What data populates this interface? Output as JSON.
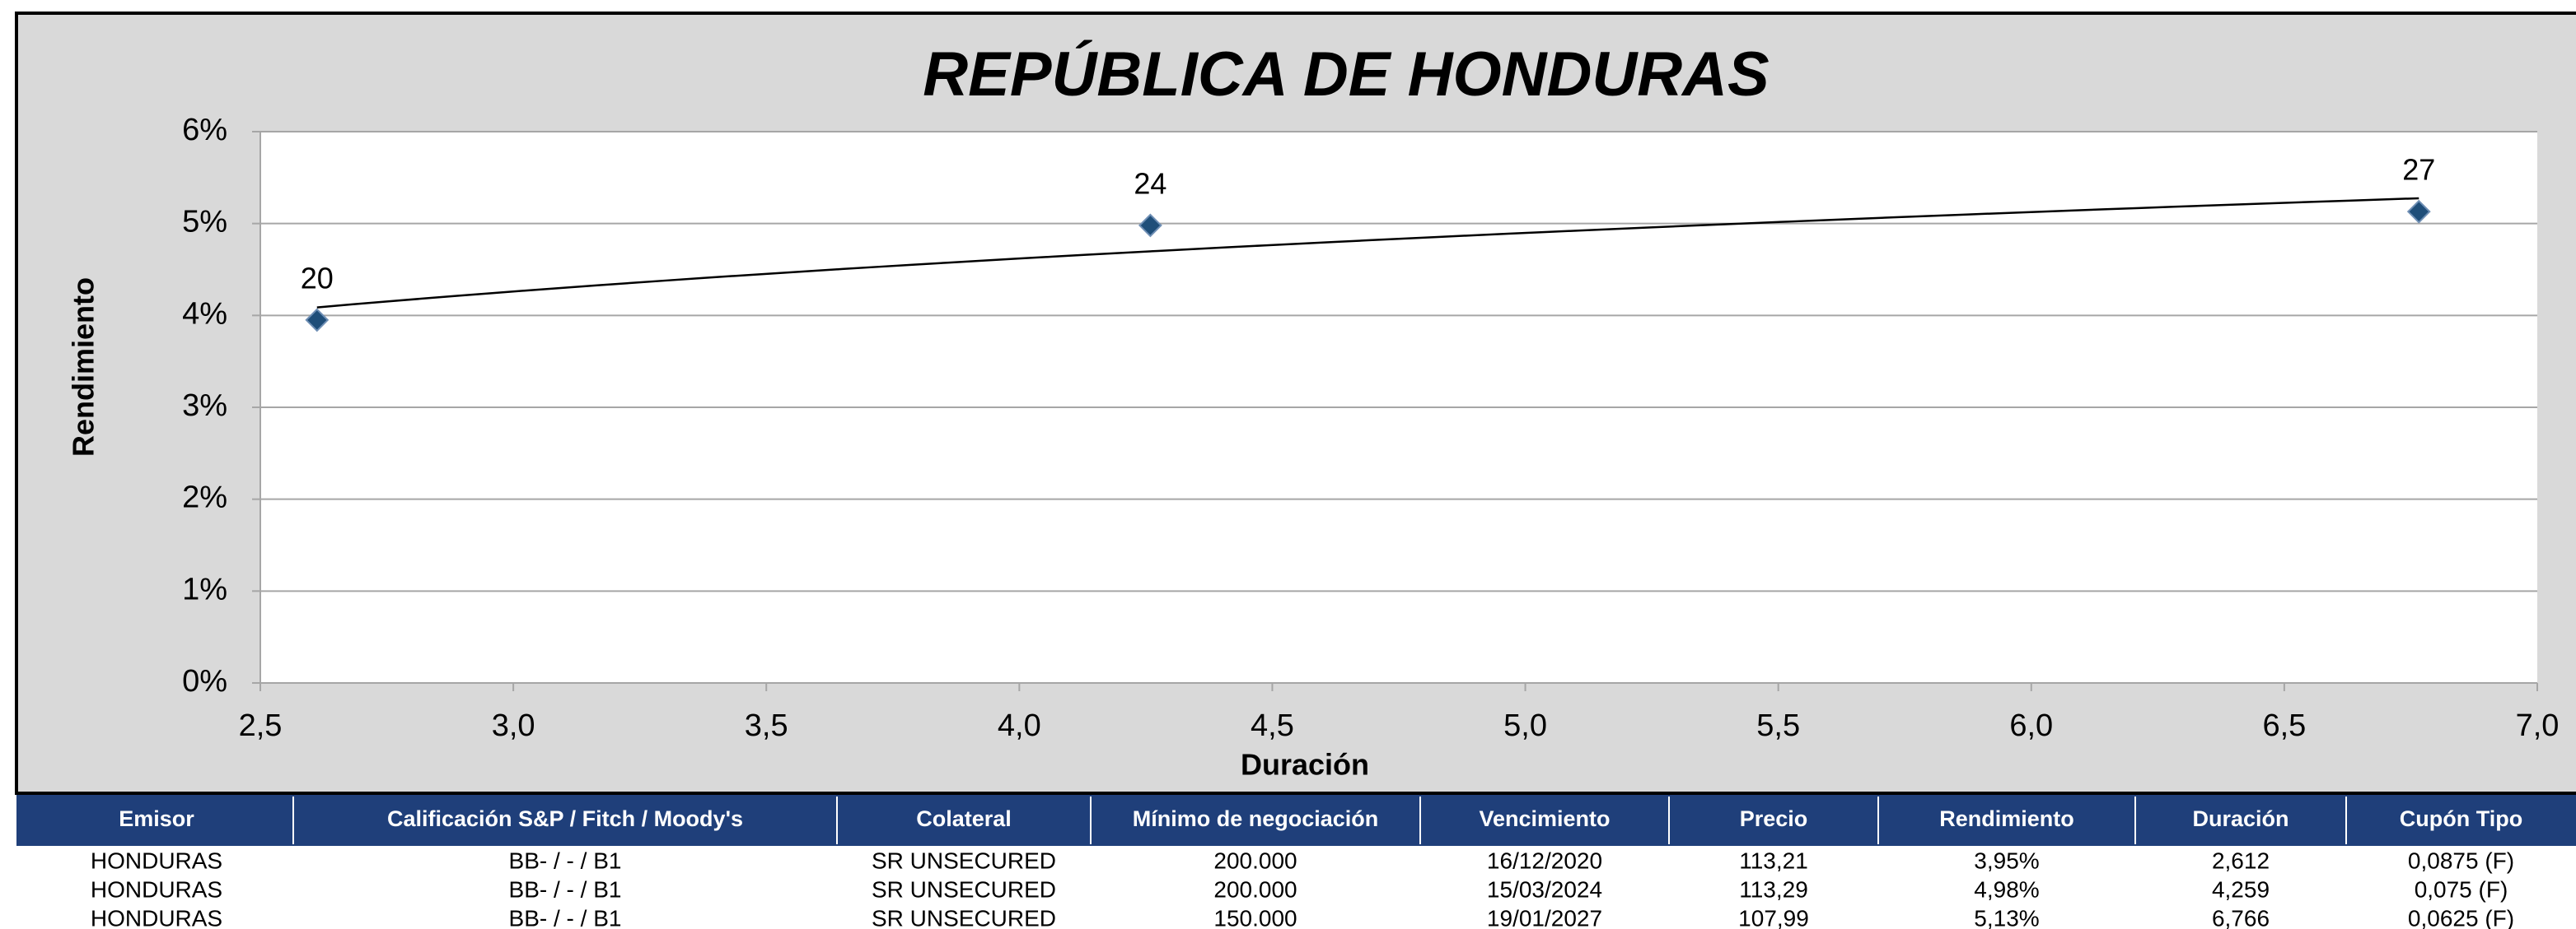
{
  "chart_data": {
    "type": "scatter",
    "title": "REPÚBLICA DE HONDURAS",
    "x_label": "Duración",
    "y_label": "Rendimiento",
    "x": [
      2.612,
      4.259,
      6.766
    ],
    "values": [
      3.95,
      4.98,
      5.13
    ],
    "labels": [
      "20",
      "24",
      "27"
    ],
    "color": "#1f4e79",
    "trendline": "logarithmic",
    "grid": true,
    "xlim": [
      2.5,
      7.0
    ],
    "xticks": [
      {
        "value": 2.5,
        "label": "2,5"
      },
      {
        "value": 3.0,
        "label": "3,0"
      },
      {
        "value": 3.5,
        "label": "3,5"
      },
      {
        "value": 4.0,
        "label": "4,0"
      },
      {
        "value": 4.5,
        "label": "4,5"
      },
      {
        "value": 5.0,
        "label": "5,0"
      },
      {
        "value": 5.5,
        "label": "5,5"
      },
      {
        "value": 6.0,
        "label": "6,0"
      },
      {
        "value": 6.5,
        "label": "6,5"
      },
      {
        "value": 7.0,
        "label": "7,0"
      }
    ],
    "ylim": [
      0,
      6
    ],
    "yticks": [
      {
        "value": 0,
        "label": "0%"
      },
      {
        "value": 1,
        "label": "1%"
      },
      {
        "value": 2,
        "label": "2%"
      },
      {
        "value": 3,
        "label": "3%"
      },
      {
        "value": 4,
        "label": "4%"
      },
      {
        "value": 5,
        "label": "5%"
      },
      {
        "value": 6,
        "label": "6%"
      }
    ]
  },
  "table": {
    "header": [
      "Emisor",
      "Calificación  S&P / Fitch / Moody's",
      "Colateral",
      "Mínimo de negociación",
      "Vencimiento",
      "Precio",
      "Rendimiento",
      "Duración",
      "Cupón Tipo"
    ],
    "rows": [
      [
        "HONDURAS",
        "BB- / - / B1",
        "SR UNSECURED",
        "200.000",
        "16/12/2020",
        "113,21",
        "3,95%",
        "2,612",
        "0,0875 (F)"
      ],
      [
        "HONDURAS",
        "BB- / - / B1",
        "SR UNSECURED",
        "200.000",
        "15/03/2024",
        "113,29",
        "4,98%",
        "4,259",
        "0,075 (F)"
      ],
      [
        "HONDURAS",
        "BB- / - / B1",
        "SR UNSECURED",
        "150.000",
        "19/01/2027",
        "107,99",
        "5,13%",
        "6,766",
        "0,0625 (F)"
      ]
    ]
  }
}
